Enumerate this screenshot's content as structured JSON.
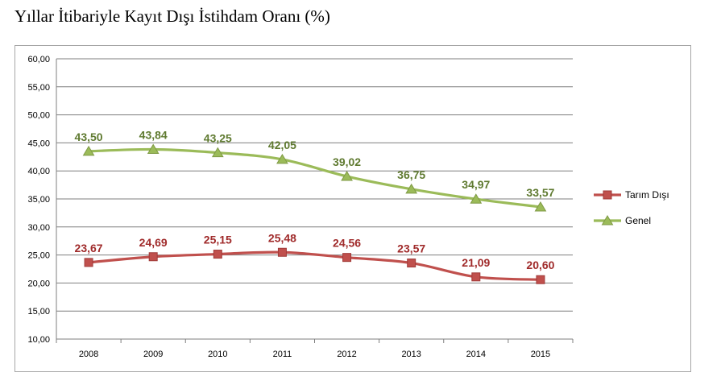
{
  "page": {
    "title": "Yıllar İtibariyle Kayıt Dışı İstihdam Oranı (%)"
  },
  "chart_data": {
    "type": "line",
    "title": "",
    "xlabel": "",
    "ylabel": "",
    "categories": [
      "2008",
      "2009",
      "2010",
      "2011",
      "2012",
      "2013",
      "2014",
      "2015"
    ],
    "ylim": [
      10,
      60
    ],
    "y_ticks": [
      "10,00",
      "15,00",
      "20,00",
      "25,00",
      "30,00",
      "35,00",
      "40,00",
      "45,00",
      "50,00",
      "55,00",
      "60,00"
    ],
    "grid": true,
    "legend_position": "right",
    "series": [
      {
        "name": "Tarım Dışı",
        "color": "#c0504d",
        "label_color": "#a02b2b",
        "marker": "square",
        "values": [
          23.67,
          24.69,
          25.15,
          25.48,
          24.56,
          23.57,
          21.09,
          20.6
        ],
        "labels": [
          "23,67",
          "24,69",
          "25,15",
          "25,48",
          "24,56",
          "23,57",
          "21,09",
          "20,60"
        ]
      },
      {
        "name": "Genel",
        "color": "#9bbb59",
        "label_color": "#5f7a30",
        "marker": "triangle",
        "values": [
          43.5,
          43.84,
          43.25,
          42.05,
          39.02,
          36.75,
          34.97,
          33.57
        ],
        "labels": [
          "43,50",
          "43,84",
          "43,25",
          "42,05",
          "39,02",
          "36,75",
          "34,97",
          "33,57"
        ]
      }
    ]
  }
}
